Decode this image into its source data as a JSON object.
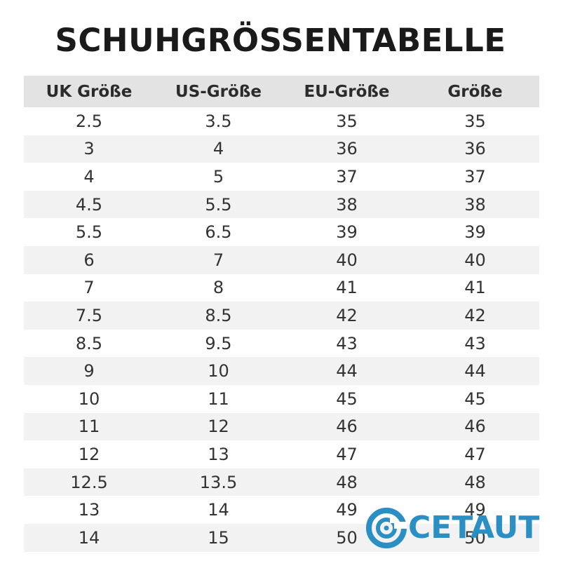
{
  "title": "SCHUHGRÖSSENTABELLE",
  "table": {
    "headers": [
      "UK Größe",
      "US-Größe",
      "EU-Größe",
      "Größe"
    ],
    "rows": [
      [
        "2.5",
        "3.5",
        "35",
        "35"
      ],
      [
        "3",
        "4",
        "36",
        "36"
      ],
      [
        "4",
        "5",
        "37",
        "37"
      ],
      [
        "4.5",
        "5.5",
        "38",
        "38"
      ],
      [
        "5.5",
        "6.5",
        "39",
        "39"
      ],
      [
        "6",
        "7",
        "40",
        "40"
      ],
      [
        "7",
        "8",
        "41",
        "41"
      ],
      [
        "7.5",
        "8.5",
        "42",
        "42"
      ],
      [
        "8.5",
        "9.5",
        "43",
        "43"
      ],
      [
        "9",
        "10",
        "44",
        "44"
      ],
      [
        "10",
        "11",
        "45",
        "45"
      ],
      [
        "11",
        "12",
        "46",
        "46"
      ],
      [
        "12",
        "13",
        "47",
        "47"
      ],
      [
        "12.5",
        "13.5",
        "48",
        "48"
      ],
      [
        "13",
        "14",
        "49",
        "49"
      ],
      [
        "14",
        "15",
        "50",
        "50"
      ]
    ]
  },
  "logo": {
    "text": "CETAUT",
    "color": "#2b8fc4"
  },
  "colors": {
    "header_bg": "#e3e3e3",
    "stripe_bg": "#f2f2f2",
    "text": "#333333"
  }
}
